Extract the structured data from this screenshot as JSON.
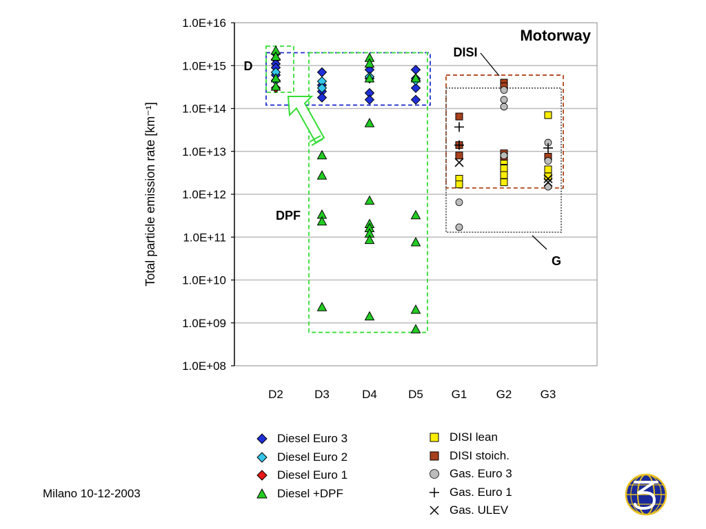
{
  "footer": {
    "date": "Milano 10-12-2003"
  },
  "chart_data": {
    "type": "scatter",
    "title": "Motorway",
    "ylabel": "Total particle emission rate [km⁻¹]",
    "xlabel": "",
    "yscale": "log",
    "ylim": [
      100000000.0,
      1e+16
    ],
    "grid": true,
    "legend_position": "bottom",
    "categories": [
      "D2",
      "D3",
      "D4",
      "D5",
      "G1",
      "G2",
      "G3"
    ],
    "y_ticks": [
      "1.0E+08",
      "1.0E+09",
      "1.0E+10",
      "1.0E+11",
      "1.0E+12",
      "1.0E+13",
      "1.0E+14",
      "1.0E+15",
      "1.0E+16"
    ],
    "annotations": [
      {
        "text": "D",
        "box": {
          "x": [
            "D2",
            "D5"
          ],
          "y": [
            120000000000000.0,
            2000000000000000.0
          ]
        },
        "color": "#2030d0",
        "style": "dashed"
      },
      {
        "text": "DPF",
        "box": {
          "x": [
            "D3",
            "D5"
          ],
          "y": [
            600000000.0,
            2000000000000000.0
          ]
        },
        "color": "#33dd33",
        "style": "dashed"
      },
      {
        "text": "DISI",
        "box": {
          "x": [
            "G1",
            "G3"
          ],
          "y": [
            1400000000000.0,
            600000000000000.0
          ]
        },
        "color": "#b0451a",
        "style": "dashed"
      },
      {
        "text": "G",
        "box": {
          "x": [
            "G1",
            "G3"
          ],
          "y": [
            130000000000.0,
            300000000000000.0
          ]
        },
        "color": "#555555",
        "style": "dotted"
      }
    ],
    "series": [
      {
        "name": "Diesel Euro 3",
        "marker": "diamond",
        "color": "#1f2fd8",
        "points": [
          [
            "D2",
            1900000000000000.0
          ],
          [
            "D2",
            1400000000000000.0
          ],
          [
            "D2",
            1100000000000000.0
          ],
          [
            "D2",
            900000000000000.0
          ],
          [
            "D2",
            600000000000000.0
          ],
          [
            "D3",
            700000000000000.0
          ],
          [
            "D3",
            350000000000000.0
          ],
          [
            "D3",
            250000000000000.0
          ],
          [
            "D3",
            180000000000000.0
          ],
          [
            "D4",
            800000000000000.0
          ],
          [
            "D4",
            500000000000000.0
          ],
          [
            "D4",
            230000000000000.0
          ],
          [
            "D4",
            160000000000000.0
          ],
          [
            "D5",
            800000000000000.0
          ],
          [
            "D5",
            500000000000000.0
          ],
          [
            "D5",
            300000000000000.0
          ],
          [
            "D5",
            160000000000000.0
          ]
        ]
      },
      {
        "name": "Diesel Euro 2",
        "marker": "diamond",
        "color": "#33c6ea",
        "points": [
          [
            "D2",
            700000000000000.0
          ],
          [
            "D2",
            450000000000000.0
          ],
          [
            "D3",
            430000000000000.0
          ],
          [
            "D3",
            300000000000000.0
          ],
          [
            "D4",
            550000000000000.0
          ],
          [
            "D5",
            450000000000000.0
          ]
        ]
      },
      {
        "name": "Diesel Euro 1",
        "marker": "diamond",
        "color": "#e81818",
        "points": [
          [
            "D2",
            300000000000000.0
          ]
        ]
      },
      {
        "name": "Diesel +DPF",
        "marker": "triangle",
        "color": "#22cc22",
        "points": [
          [
            "D2",
            2200000000000000.0
          ],
          [
            "D2",
            1600000000000000.0
          ],
          [
            "D2",
            500000000000000.0
          ],
          [
            "D2",
            320000000000000.0
          ],
          [
            "D3",
            8000000000000.0
          ],
          [
            "D3",
            2700000000000.0
          ],
          [
            "D3",
            330000000000.0
          ],
          [
            "D3",
            230000000000.0
          ],
          [
            "D3",
            2300000000.0
          ],
          [
            "D4",
            1500000000000000.0
          ],
          [
            "D4",
            1100000000000000.0
          ],
          [
            "D4",
            500000000000000.0
          ],
          [
            "D4",
            45000000000000.0
          ],
          [
            "D4",
            700000000000.0
          ],
          [
            "D4",
            200000000000.0
          ],
          [
            "D4",
            160000000000.0
          ],
          [
            "D4",
            120000000000.0
          ],
          [
            "D4",
            85000000000.0
          ],
          [
            "D4",
            1400000000.0
          ],
          [
            "D5",
            500000000000000.0
          ],
          [
            "D5",
            320000000000.0
          ],
          [
            "D5",
            75000000000.0
          ],
          [
            "D5",
            2000000000.0
          ],
          [
            "D5",
            700000000.0
          ]
        ]
      },
      {
        "name": "DISI lean",
        "marker": "square",
        "color": "#ffee00",
        "points": [
          [
            "G1",
            2300000000000.0
          ],
          [
            "G1",
            1700000000000.0
          ],
          [
            "G2",
            6000000000000.0
          ],
          [
            "G2",
            4000000000000.0
          ],
          [
            "G2",
            2800000000000.0
          ],
          [
            "G2",
            1900000000000.0
          ],
          [
            "G3",
            70000000000000.0
          ],
          [
            "G3",
            3800000000000.0
          ],
          [
            "G3",
            2600000000000.0
          ]
        ]
      },
      {
        "name": "DISI stoich.",
        "marker": "square",
        "color": "#a8401c",
        "points": [
          [
            "G1",
            65000000000000.0
          ],
          [
            "G1",
            14000000000000.0
          ],
          [
            "G1",
            8000000000000.0
          ],
          [
            "G2",
            400000000000000.0
          ],
          [
            "G2",
            330000000000000.0
          ],
          [
            "G2",
            9000000000000.0
          ],
          [
            "G2",
            7500000000000.0
          ],
          [
            "G3",
            7500000000000.0
          ]
        ]
      },
      {
        "name": "Gas. Euro 3",
        "marker": "circle",
        "color": "#bcbcbc",
        "points": [
          [
            "G1",
            650000000000.0
          ],
          [
            "G1",
            170000000000.0
          ],
          [
            "G2",
            270000000000000.0
          ],
          [
            "G2",
            160000000000000.0
          ],
          [
            "G2",
            110000000000000.0
          ],
          [
            "G2",
            8000000000000.0
          ],
          [
            "G3",
            16000000000000.0
          ],
          [
            "G3",
            6000000000000.0
          ],
          [
            "G3",
            1500000000000.0
          ]
        ]
      },
      {
        "name": "Gas. Euro 1",
        "marker": "plus",
        "color": "#000000",
        "points": [
          [
            "G1",
            37000000000000.0
          ],
          [
            "G1",
            14000000000000.0
          ],
          [
            "G3",
            12000000000000.0
          ]
        ]
      },
      {
        "name": "Gas. ULEV",
        "marker": "x",
        "color": "#000000",
        "points": [
          [
            "G1",
            5500000000000.0
          ],
          [
            "G3",
            2300000000000.0
          ],
          [
            "G3",
            1900000000000.0
          ]
        ]
      }
    ]
  }
}
